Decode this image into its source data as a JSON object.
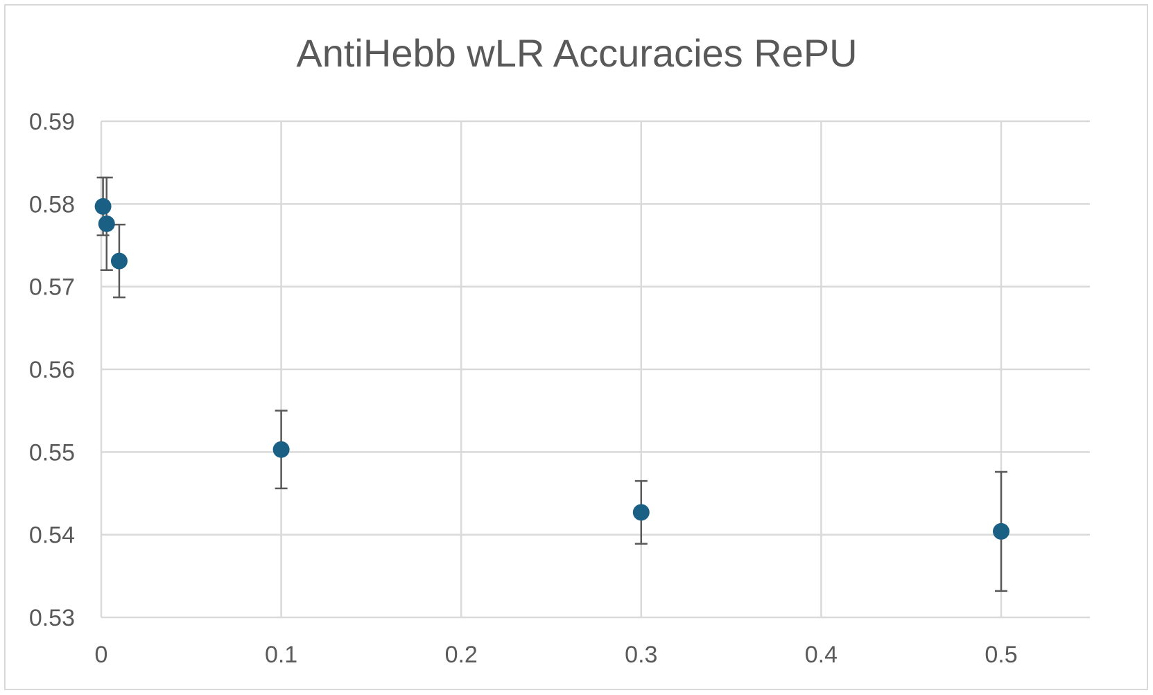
{
  "chart_data": {
    "type": "scatter",
    "title": "AntiHebb wLR Accuracies RePU",
    "xlabel": "",
    "ylabel": "",
    "xlim": [
      0,
      0.55
    ],
    "ylim": [
      0.53,
      0.59
    ],
    "x_ticks": [
      {
        "value": 0,
        "label": "0"
      },
      {
        "value": 0.1,
        "label": "0.1"
      },
      {
        "value": 0.2,
        "label": "0.2"
      },
      {
        "value": 0.3,
        "label": "0.3"
      },
      {
        "value": 0.4,
        "label": "0.4"
      },
      {
        "value": 0.5,
        "label": "0.5"
      }
    ],
    "y_ticks": [
      {
        "value": 0.53,
        "label": "0.53"
      },
      {
        "value": 0.54,
        "label": "0.54"
      },
      {
        "value": 0.55,
        "label": "0.55"
      },
      {
        "value": 0.56,
        "label": "0.56"
      },
      {
        "value": 0.57,
        "label": "0.57"
      },
      {
        "value": 0.58,
        "label": "0.58"
      },
      {
        "value": 0.59,
        "label": "0.59"
      }
    ],
    "grid": true,
    "legend": "none",
    "series": [
      {
        "points": [
          {
            "x": 0.001,
            "y": 0.5797,
            "err": 0.0035
          },
          {
            "x": 0.003,
            "y": 0.5776,
            "err": 0.0056
          },
          {
            "x": 0.01,
            "y": 0.5731,
            "err": 0.0044
          },
          {
            "x": 0.1,
            "y": 0.5503,
            "err": 0.0047
          },
          {
            "x": 0.3,
            "y": 0.5427,
            "err": 0.0038
          },
          {
            "x": 0.5,
            "y": 0.5404,
            "err": 0.0072
          }
        ],
        "color": "#1a5f84"
      }
    ],
    "colors": {
      "grid": "#d9d9d9",
      "errorbar": "#595959",
      "text": "#595959",
      "frame": "#d9d9d9"
    }
  }
}
